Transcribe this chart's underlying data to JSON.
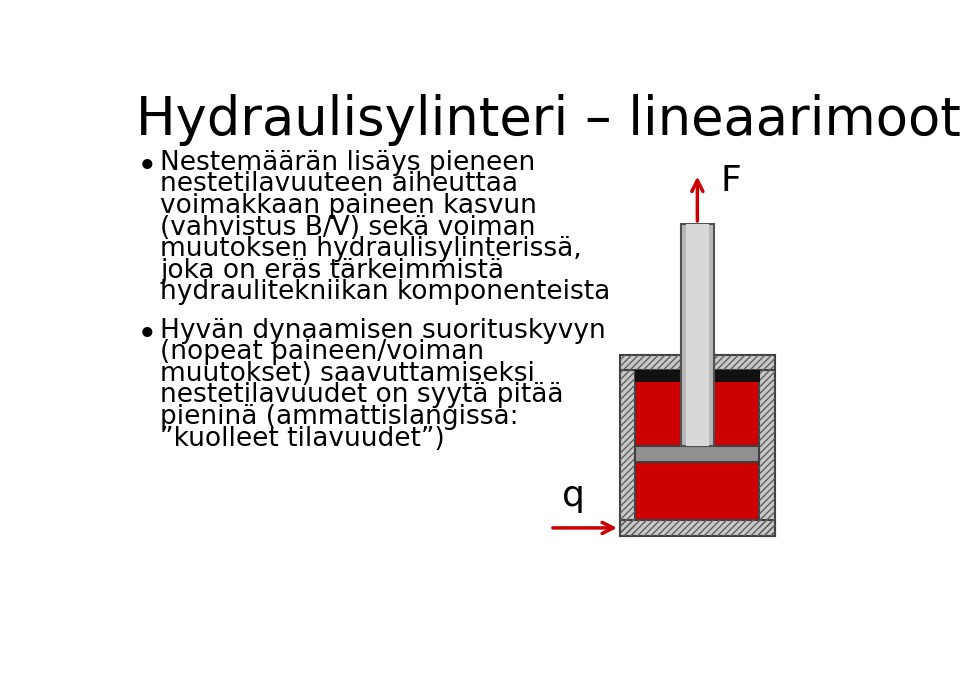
{
  "title": "Hydraulisylinteri – lineaarimoottori",
  "title_fontsize": 38,
  "title_color": "#000000",
  "background_color": "#ffffff",
  "bullet1_lines": [
    "Nestemäärän lisäys pieneen",
    "nestetilavuuteen aiheuttaa",
    "voimakkaan paineen kasvun",
    "(vahvistus B/V) sekä voiman",
    "muutoksen hydraulisylinterissä,",
    "joka on eräs tärkeimmistä",
    "hydraulitekniikan komponenteista"
  ],
  "bullet2_lines": [
    "Hyvän dynaamisen suorituskyvyn",
    "(nopeat paineen/voiman",
    "muutokset) saavuttamiseksi",
    "nestetilavuudet on syytä pitää",
    "pieninä (ammattislangissa:",
    "”kuolleet tilavuudet”)"
  ],
  "text_fontsize": 19,
  "bullet_color": "#000000",
  "label_F": "F",
  "label_q": "q",
  "label_fontsize": 26,
  "arrow_color": "#cc0000",
  "cylinder_colors": {
    "fluid": "#cc0000",
    "piston": "#909090",
    "seal": "#111111",
    "wall_face": "#c8c8c8",
    "wall_hatch": "#606060",
    "rod_face": "#b8b8b8",
    "rod_highlight": "#d8d8d8"
  }
}
